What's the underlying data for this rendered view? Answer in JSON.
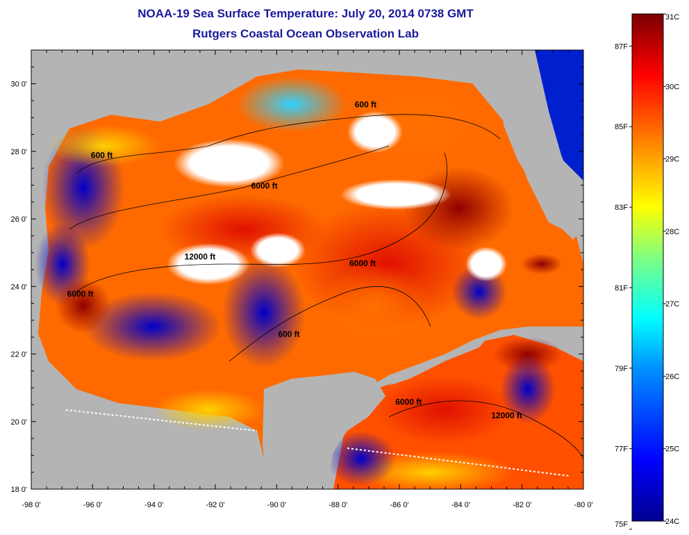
{
  "title": "NOAA-19 Sea Surface Temperature:  July 20, 2014 0738 GMT",
  "subtitle": "Rutgers Coastal Ocean Observation Lab",
  "map": {
    "lon_range": [
      -98,
      -80
    ],
    "lat_range": [
      18,
      31
    ],
    "x_ticks": [
      "-98 0'",
      "-96 0'",
      "-94 0'",
      "-92 0'",
      "-90 0'",
      "-88 0'",
      "-86 0'",
      "-84 0'",
      "-82 0'",
      "-80 0'"
    ],
    "y_ticks": [
      "18 0'",
      "20 0'",
      "22 0'",
      "24 0'",
      "26 0'",
      "28 0'",
      "30 0'"
    ],
    "contour_labels": [
      {
        "text": "600 ft",
        "lon": -95.7,
        "lat": 27.8
      },
      {
        "text": "600 ft",
        "lon": -87.1,
        "lat": 29.3
      },
      {
        "text": "6000 ft",
        "lon": -90.4,
        "lat": 26.9
      },
      {
        "text": "12000 ft",
        "lon": -92.5,
        "lat": 24.8
      },
      {
        "text": "6000 ft",
        "lon": -87.2,
        "lat": 24.6
      },
      {
        "text": "6000 ft",
        "lon": -96.4,
        "lat": 23.7
      },
      {
        "text": "600 ft",
        "lon": -89.6,
        "lat": 22.5
      },
      {
        "text": "6000 ft",
        "lon": -85.7,
        "lat": 20.5
      },
      {
        "text": "12000 ft",
        "lon": -82.5,
        "lat": 20.1
      }
    ],
    "colors": {
      "land": "#b4b4b4",
      "cloud": "#ffffff"
    }
  },
  "colorbar": {
    "celsius_labels": [
      "31C",
      "30C",
      "29C",
      "28C",
      "27C",
      "26C",
      "25C",
      "24C"
    ],
    "fahrenheit_labels": [
      "87F",
      "85F",
      "83F",
      "81F",
      "79F",
      "77F",
      "75F"
    ],
    "range_c": [
      24,
      31
    ],
    "colors": [
      "#00008f",
      "#0000ff",
      "#0080ff",
      "#00ffff",
      "#80ff80",
      "#ffff00",
      "#ff8000",
      "#ff0000",
      "#800000"
    ]
  }
}
